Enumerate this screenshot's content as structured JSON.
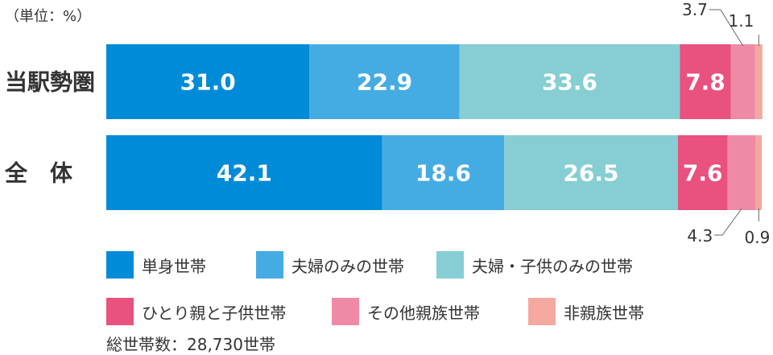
{
  "unit_label": "（単位：%）",
  "total_label": "総世帯数：28,730世帯",
  "chart_data": {
    "type": "bar",
    "stacked": true,
    "orientation": "horizontal",
    "percent_total": 100,
    "categories": [
      "当駅勢圏",
      "全　体"
    ],
    "series": [
      {
        "name": "単身世帯",
        "color": "#008bd8",
        "values": [
          31.0,
          42.1
        ]
      },
      {
        "name": "夫婦のみの世帯",
        "color": "#45ace3",
        "values": [
          22.9,
          18.6
        ]
      },
      {
        "name": "夫婦・子供のみの世帯",
        "color": "#86ced4",
        "values": [
          33.6,
          26.5
        ]
      },
      {
        "name": "ひとり親と子供世帯",
        "color": "#e9517f",
        "values": [
          7.8,
          7.6
        ]
      },
      {
        "name": "その他親族世帯",
        "color": "#ef8aa6",
        "values": [
          3.7,
          4.3
        ]
      },
      {
        "name": "非親族世帯",
        "color": "#f4a8a0",
        "values": [
          1.1,
          0.9
        ]
      }
    ],
    "label_color": "#ffffff",
    "external_labels": [
      {
        "bar": 0,
        "series": 4,
        "text": "3.7",
        "side": "top"
      },
      {
        "bar": 0,
        "series": 5,
        "text": "1.1",
        "side": "top"
      },
      {
        "bar": 1,
        "series": 4,
        "text": "4.3",
        "side": "bottom"
      },
      {
        "bar": 1,
        "series": 5,
        "text": "0.9",
        "side": "bottom"
      }
    ],
    "legend_position": "bottom",
    "grid": false
  }
}
